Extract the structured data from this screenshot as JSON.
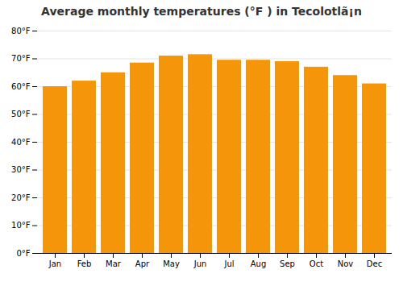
{
  "chart_data": {
    "type": "bar",
    "title": "Average monthly temperatures (°F ) in Tecolotlã¡n",
    "categories": [
      "Jan",
      "Feb",
      "Mar",
      "Apr",
      "May",
      "Jun",
      "Jul",
      "Aug",
      "Sep",
      "Oct",
      "Nov",
      "Dec"
    ],
    "values": [
      60,
      62,
      65,
      68.5,
      71,
      71.5,
      69.5,
      69.5,
      69,
      67,
      64,
      61
    ],
    "color": "#F5960A",
    "ylim": [
      0,
      80
    ],
    "yticks": [
      {
        "value": 0,
        "label": "0°F"
      },
      {
        "value": 10,
        "label": "10°F"
      },
      {
        "value": 20,
        "label": "20°F"
      },
      {
        "value": 30,
        "label": "30°F"
      },
      {
        "value": 40,
        "label": "40°F"
      },
      {
        "value": 50,
        "label": "50°F"
      },
      {
        "value": 60,
        "label": "60°F"
      },
      {
        "value": 70,
        "label": "70°F"
      },
      {
        "value": 80,
        "label": "80°F"
      }
    ],
    "grid": true
  }
}
